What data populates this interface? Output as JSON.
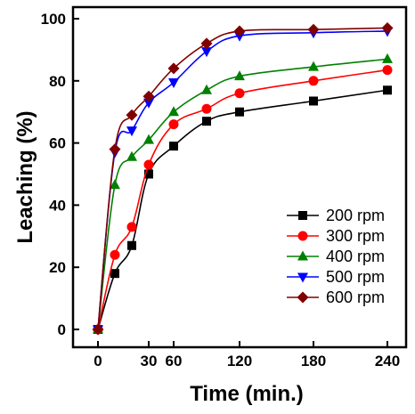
{
  "chart_data": {
    "type": "line",
    "xlabel": "Time (min.)",
    "ylabel": "Leaching (%)",
    "xlim": [
      -10,
      250
    ],
    "ylim": [
      -5,
      102
    ],
    "x_axis_scale": "piecewise",
    "x_ticks": [
      0,
      30,
      60,
      120,
      180,
      240
    ],
    "x_tick_labels": [
      "0",
      "30",
      "60",
      "120",
      "180",
      "240"
    ],
    "y_ticks": [
      0,
      20,
      40,
      60,
      80,
      100
    ],
    "y_tick_labels": [
      "0",
      "20",
      "40",
      "60",
      "80",
      "100"
    ],
    "grid": false,
    "legend_position": "bottom-right",
    "x": [
      0,
      10,
      20,
      30,
      60,
      90,
      120,
      180,
      240
    ],
    "series": [
      {
        "name": "200 rpm",
        "color": "#000000",
        "marker": "square",
        "values": [
          0,
          18,
          27,
          50,
          59,
          67,
          70,
          73.5,
          77
        ]
      },
      {
        "name": "300 rpm",
        "color": "#ff0000",
        "marker": "circle",
        "values": [
          0,
          24,
          33,
          53,
          66,
          71,
          76,
          80,
          83.5
        ]
      },
      {
        "name": "400 rpm",
        "color": "#008000",
        "marker": "triangle-up",
        "values": [
          0,
          46.5,
          55.5,
          61,
          70,
          77,
          81.5,
          84.5,
          87
        ]
      },
      {
        "name": "500 rpm",
        "color": "#0000ff",
        "marker": "triangle-down",
        "values": [
          0,
          57,
          64,
          73,
          79.5,
          89.5,
          94.5,
          95.5,
          96
        ]
      },
      {
        "name": "600 rpm",
        "color": "#800000",
        "marker": "diamond",
        "values": [
          0,
          58,
          69,
          75,
          84,
          92,
          96,
          96.5,
          97
        ]
      }
    ]
  }
}
